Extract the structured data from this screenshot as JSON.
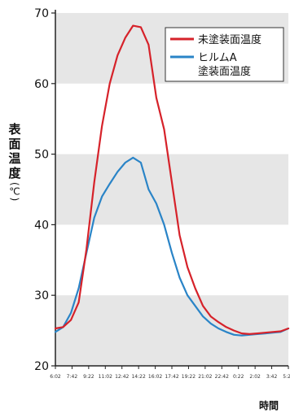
{
  "chart_data": {
    "type": "line",
    "ylabel": "表面温度",
    "yunit": "(℃)",
    "xlabel": "時間",
    "ylim": [
      20,
      70
    ],
    "yticks": [
      20,
      30,
      40,
      50,
      60,
      70
    ],
    "xticks": [
      "6:02",
      "7:42",
      "9:22",
      "11:02",
      "12:42",
      "14:22",
      "16:02",
      "17:42",
      "19:22",
      "21:02",
      "22:42",
      "0:22",
      "2:02",
      "3:42",
      "5:22"
    ],
    "legend_position": "top-right",
    "series": [
      {
        "name": "未塗装面温度",
        "color": "#d6222a",
        "values": [
          25.3,
          25.5,
          26.5,
          29.0,
          36.5,
          46.0,
          54.0,
          60.0,
          64.0,
          66.5,
          68.2,
          68.0,
          65.5,
          58.0,
          53.5,
          46.0,
          38.5,
          34.0,
          31.0,
          28.5,
          27.0,
          26.2,
          25.5,
          25.0,
          24.6,
          24.5,
          24.6,
          24.7,
          24.8,
          24.9,
          25.3
        ]
      },
      {
        "name": "ヒルムA\n塗装面温度",
        "color": "#2a84c7",
        "values": [
          24.8,
          25.5,
          27.5,
          31.0,
          36.0,
          41.0,
          44.0,
          45.8,
          47.5,
          48.8,
          49.5,
          48.8,
          45.0,
          43.0,
          40.0,
          36.0,
          32.5,
          30.0,
          28.5,
          27.0,
          26.0,
          25.3,
          24.8,
          24.4,
          24.3,
          24.4,
          24.5,
          24.6,
          24.7,
          24.8,
          25.3
        ]
      }
    ]
  }
}
